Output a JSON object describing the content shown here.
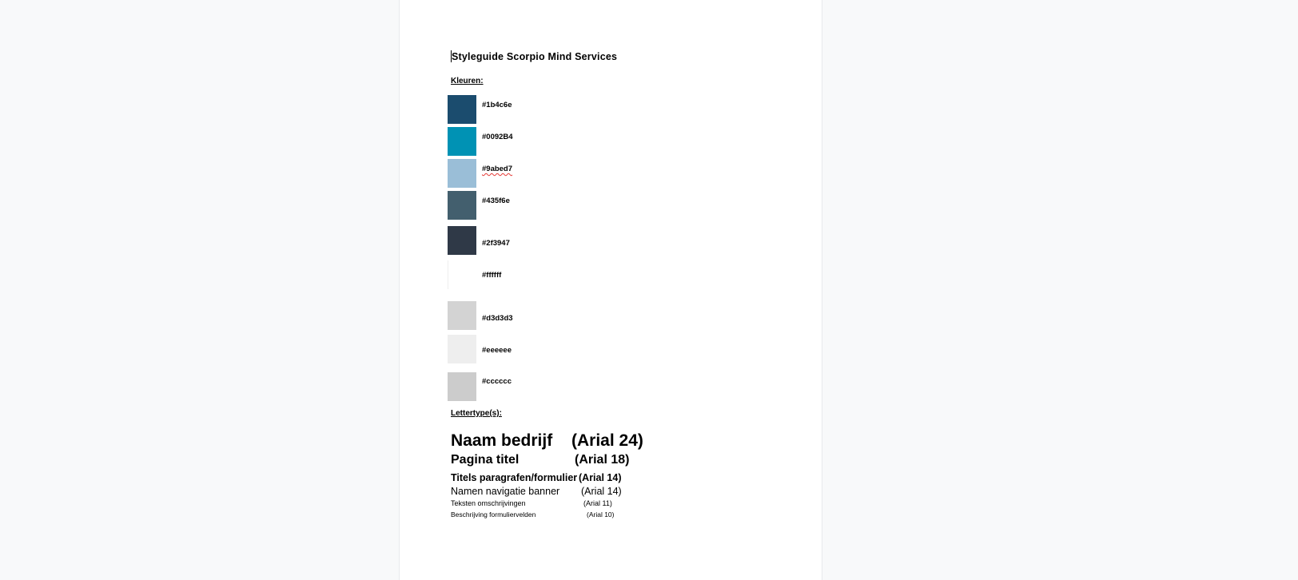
{
  "document": {
    "title": "Styleguide Scorpio Mind Services",
    "colors_heading": "Kleuren:",
    "colors": [
      {
        "hex": "#1b4c6e",
        "label": "#1b4c6e",
        "spellcheck": false
      },
      {
        "hex": "#0092B4",
        "label": "#0092B4",
        "spellcheck": false
      },
      {
        "hex": "#9abed7",
        "label": "#9abed7",
        "spellcheck": true
      },
      {
        "hex": "#435f6e",
        "label": "#435f6e",
        "spellcheck": false
      },
      {
        "hex": "#2f3947",
        "label": "#2f3947",
        "spellcheck": false
      },
      {
        "hex": "#ffffff",
        "label": "#ffffff",
        "spellcheck": false
      },
      {
        "hex": "#d3d3d3",
        "label": "#d3d3d3",
        "spellcheck": false
      },
      {
        "hex": "#eeeeee",
        "label": "#eeeeee",
        "spellcheck": false
      },
      {
        "hex": "#cccccc",
        "label": "#cccccc",
        "spellcheck": false
      }
    ],
    "fonts_heading": "Lettertype(s):",
    "fonts": [
      {
        "sample": "Naam bedrijf",
        "spec": "(Arial 24)"
      },
      {
        "sample": "Pagina titel",
        "spec": "(Arial 18)"
      },
      {
        "sample": "Titels paragrafen/formulier",
        "spec": "(Arial 14)"
      },
      {
        "sample": "Namen navigatie banner",
        "spec": "(Arial 14)"
      },
      {
        "sample": "Teksten omschrijvingen",
        "spec": "(Arial 11)"
      },
      {
        "sample": "Beschrijving formuliervelden",
        "spec": "(Arial 10)"
      }
    ]
  },
  "theme": {
    "page_background": "#ffffff",
    "canvas_background": "#f8f9fa",
    "spellcheck_underline": "#e53935"
  }
}
